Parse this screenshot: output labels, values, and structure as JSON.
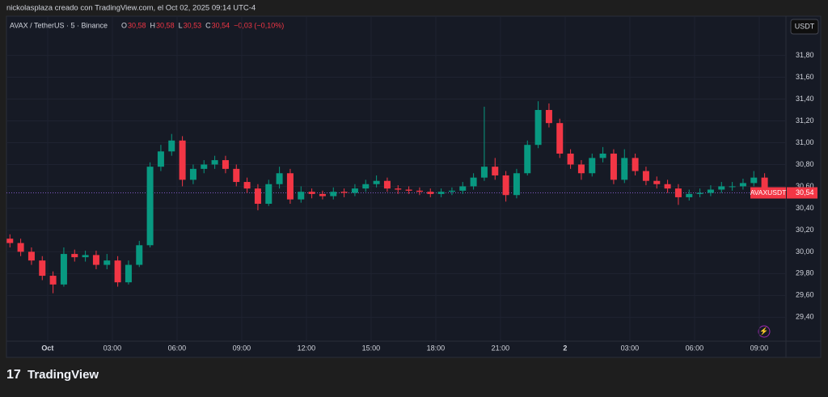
{
  "header": {
    "credit": "nickolasplaza creado con TradingView.com, el Oct 02, 2025 09:14 UTC-4"
  },
  "chart_data": {
    "type": "candlestick",
    "title": "AVAX / TetherUS · 5 · Binance",
    "ohlc": [
      {
        "key": "O",
        "value": "30,58"
      },
      {
        "key": "H",
        "value": "30,58"
      },
      {
        "key": "L",
        "value": "30,53"
      },
      {
        "key": "C",
        "value": "30,54"
      }
    ],
    "change": "−0,03 (−0,10%)",
    "currency": "USDT",
    "up_color": "#089981",
    "down_color": "#f23645",
    "xlim": [
      -1.91,
      34.24
    ],
    "xticks": [
      {
        "value": 0,
        "label": "Oct"
      },
      {
        "value": 3,
        "label": "03:00"
      },
      {
        "value": 6,
        "label": "06:00"
      },
      {
        "value": 9,
        "label": "09:00"
      },
      {
        "value": 12,
        "label": "12:00"
      },
      {
        "value": 15,
        "label": "15:00"
      },
      {
        "value": 18,
        "label": "18:00"
      },
      {
        "value": 21,
        "label": "21:00"
      },
      {
        "value": 24,
        "label": "2"
      },
      {
        "value": 27,
        "label": "03:00"
      },
      {
        "value": 30,
        "label": "06:00"
      },
      {
        "value": 33,
        "label": "09:00"
      }
    ],
    "ylim": [
      29.18,
      32.16
    ],
    "yticks": [
      {
        "value": 29.4,
        "label": "29,40"
      },
      {
        "value": 29.6,
        "label": "29,60"
      },
      {
        "value": 29.8,
        "label": "29,80"
      },
      {
        "value": 30,
        "label": "30,00"
      },
      {
        "value": 30.2,
        "label": "30,20"
      },
      {
        "value": 30.4,
        "label": "30,40"
      },
      {
        "value": 30.6,
        "label": "30,60"
      },
      {
        "value": 30.8,
        "label": "30,80"
      },
      {
        "value": 31,
        "label": "31,00"
      },
      {
        "value": 31.2,
        "label": "31,20"
      },
      {
        "value": 31.4,
        "label": "31,40"
      },
      {
        "value": 31.6,
        "label": "31,60"
      },
      {
        "value": 31.8,
        "label": "31,80"
      }
    ],
    "grid": true,
    "x": [
      -1.75,
      -1.25,
      -0.75,
      -0.25,
      0.25,
      0.75,
      1.25,
      1.75,
      2.25,
      2.75,
      3.25,
      3.75,
      4.25,
      4.75,
      5.25,
      5.75,
      6.25,
      6.75,
      7.25,
      7.75,
      8.25,
      8.75,
      9.25,
      9.75,
      10.25,
      10.75,
      11.25,
      11.75,
      12.25,
      12.75,
      13.25,
      13.75,
      14.25,
      14.75,
      15.25,
      15.75,
      16.25,
      16.75,
      17.25,
      17.75,
      18.25,
      18.75,
      19.25,
      19.75,
      20.25,
      20.75,
      21.25,
      21.75,
      22.25,
      22.75,
      23.25,
      23.75,
      24.25,
      24.75,
      25.25,
      25.75,
      26.25,
      26.75,
      27.25,
      27.75,
      28.25,
      28.75,
      29.25,
      29.75,
      30.25,
      30.75,
      31.25,
      31.75,
      32.25,
      32.75,
      33.25
    ],
    "open": [
      30.12,
      30.08,
      30.0,
      29.92,
      29.78,
      29.7,
      29.98,
      29.95,
      29.97,
      29.88,
      29.92,
      29.72,
      29.88,
      30.06,
      30.78,
      30.92,
      31.02,
      30.66,
      30.76,
      30.8,
      30.84,
      30.76,
      30.64,
      30.58,
      30.44,
      30.62,
      30.72,
      30.48,
      30.55,
      30.53,
      30.51,
      30.55,
      30.54,
      30.58,
      30.62,
      30.65,
      30.58,
      30.57,
      30.56,
      30.55,
      30.53,
      30.55,
      30.56,
      30.6,
      30.68,
      30.78,
      30.7,
      30.52,
      30.72,
      30.98,
      31.3,
      31.18,
      30.9,
      30.8,
      30.72,
      30.86,
      30.9,
      30.66,
      30.86,
      30.74,
      30.65,
      30.62,
      30.58,
      30.5,
      30.53,
      30.54,
      30.57,
      30.6,
      30.6,
      30.63,
      30.68
    ],
    "high": [
      30.16,
      30.12,
      30.04,
      29.96,
      29.82,
      30.04,
      30.02,
      30.01,
      30.01,
      29.98,
      29.96,
      29.92,
      30.1,
      30.82,
      30.98,
      31.08,
      31.06,
      30.8,
      30.84,
      30.88,
      30.88,
      30.8,
      30.68,
      30.62,
      30.66,
      30.78,
      30.76,
      30.6,
      30.58,
      30.56,
      30.59,
      30.58,
      30.62,
      30.66,
      30.7,
      30.68,
      30.61,
      30.6,
      30.59,
      30.58,
      30.58,
      30.59,
      30.64,
      30.72,
      31.33,
      30.86,
      30.74,
      30.76,
      31.02,
      31.38,
      31.36,
      31.22,
      30.94,
      30.84,
      30.9,
      30.96,
      30.94,
      30.94,
      30.9,
      30.78,
      30.69,
      30.66,
      30.62,
      30.57,
      30.58,
      30.61,
      30.64,
      30.64,
      30.67,
      30.74,
      30.72
    ],
    "low": [
      30.04,
      29.96,
      29.88,
      29.74,
      29.62,
      29.68,
      29.91,
      29.91,
      29.84,
      29.84,
      29.68,
      29.7,
      29.86,
      30.04,
      30.74,
      30.88,
      30.6,
      30.62,
      30.72,
      30.76,
      30.72,
      30.6,
      30.54,
      30.38,
      30.42,
      30.58,
      30.44,
      30.45,
      30.49,
      30.48,
      30.48,
      30.5,
      30.51,
      30.55,
      30.59,
      30.55,
      30.53,
      30.53,
      30.52,
      30.5,
      30.5,
      30.52,
      30.53,
      30.57,
      30.65,
      30.66,
      30.46,
      30.49,
      30.7,
      30.95,
      31.14,
      30.86,
      30.76,
      30.66,
      30.69,
      30.82,
      30.62,
      30.63,
      30.7,
      30.61,
      30.58,
      30.54,
      30.43,
      30.47,
      30.5,
      30.51,
      30.54,
      30.56,
      30.57,
      30.6,
      30.52
    ],
    "close": [
      30.08,
      30.0,
      29.92,
      29.78,
      29.7,
      29.98,
      29.95,
      29.97,
      29.88,
      29.92,
      29.72,
      29.88,
      30.06,
      30.78,
      30.92,
      31.02,
      30.66,
      30.76,
      30.8,
      30.84,
      30.76,
      30.64,
      30.58,
      30.44,
      30.62,
      30.72,
      30.48,
      30.55,
      30.53,
      30.51,
      30.55,
      30.54,
      30.58,
      30.62,
      30.65,
      30.58,
      30.57,
      30.56,
      30.55,
      30.53,
      30.55,
      30.56,
      30.6,
      30.68,
      30.78,
      30.7,
      30.52,
      30.72,
      30.98,
      31.3,
      31.18,
      30.9,
      30.8,
      30.72,
      30.86,
      30.9,
      30.66,
      30.86,
      30.74,
      30.65,
      30.62,
      30.58,
      30.5,
      30.53,
      30.54,
      30.57,
      30.6,
      30.6,
      30.63,
      30.68,
      30.54
    ],
    "last_price": {
      "value": 30.54,
      "label": "30,54",
      "symbol": "AVAXUSDT"
    }
  },
  "footer": {
    "brand": "TradingView"
  }
}
